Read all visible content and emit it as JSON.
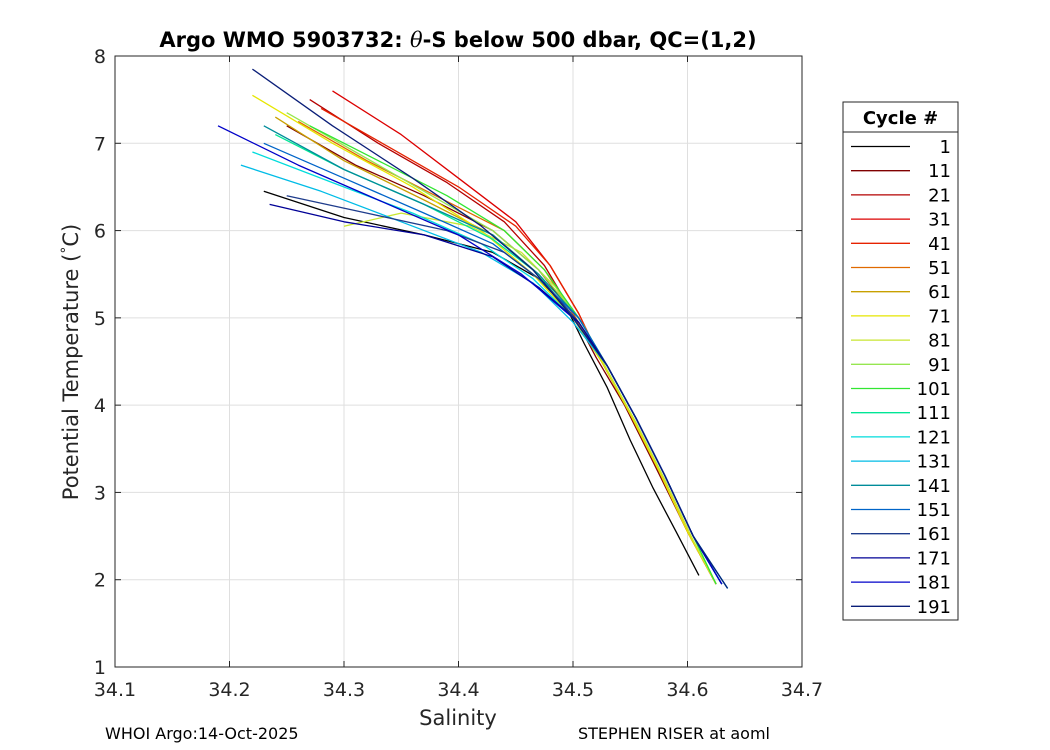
{
  "chart_data": {
    "type": "line",
    "title_prefix": "Argo WMO 5903732: ",
    "title_theta": "θ",
    "title_suffix": "-S below 500 dbar,  QC=(1,2)",
    "xlabel": "Salinity",
    "ylabel_prefix": "Potential Temperature (",
    "ylabel_degree": "°",
    "ylabel_suffix": "C)",
    "xlim": [
      34.1,
      34.7
    ],
    "ylim": [
      1,
      8
    ],
    "x_ticks": [
      "34.1",
      "34.2",
      "34.3",
      "34.4",
      "34.5",
      "34.6",
      "34.7"
    ],
    "y_ticks": [
      "1",
      "2",
      "3",
      "4",
      "5",
      "6",
      "7",
      "8"
    ],
    "grid": true,
    "legend": {
      "title": "Cycle #",
      "placement": "outside-right",
      "entries": [
        {
          "label": "1",
          "color": "#000000"
        },
        {
          "label": "11",
          "color": "#800000"
        },
        {
          "label": "21",
          "color": "#b40000"
        },
        {
          "label": "31",
          "color": "#dc0000"
        },
        {
          "label": "41",
          "color": "#e62200"
        },
        {
          "label": "51",
          "color": "#e06a00"
        },
        {
          "label": "61",
          "color": "#c8a000"
        },
        {
          "label": "71",
          "color": "#e6e600"
        },
        {
          "label": "81",
          "color": "#c8e632"
        },
        {
          "label": "91",
          "color": "#96e650"
        },
        {
          "label": "101",
          "color": "#32e632"
        },
        {
          "label": "111",
          "color": "#00e696"
        },
        {
          "label": "121",
          "color": "#00dcdc"
        },
        {
          "label": "131",
          "color": "#00bce6"
        },
        {
          "label": "141",
          "color": "#008c9a"
        },
        {
          "label": "151",
          "color": "#0064c8"
        },
        {
          "label": "161",
          "color": "#1e3c8c"
        },
        {
          "label": "171",
          "color": "#000096"
        },
        {
          "label": "181",
          "color": "#0000c8"
        },
        {
          "label": "191",
          "color": "#0a1e78"
        }
      ]
    },
    "series": [
      {
        "name": "1",
        "color": "#000000",
        "x": [
          34.23,
          34.3,
          34.37,
          34.43,
          34.47,
          34.495,
          34.51,
          34.53,
          34.55,
          34.57,
          34.59,
          34.61
        ],
        "y": [
          6.45,
          6.15,
          5.95,
          5.75,
          5.45,
          5.1,
          4.7,
          4.2,
          3.6,
          3.05,
          2.55,
          2.05
        ]
      },
      {
        "name": "11",
        "color": "#800000",
        "x": [
          34.25,
          34.31,
          34.37,
          34.43,
          34.47,
          34.5,
          34.52,
          34.545,
          34.57,
          34.6,
          34.625
        ],
        "y": [
          7.2,
          6.75,
          6.4,
          6.0,
          5.55,
          5.05,
          4.55,
          4.0,
          3.35,
          2.55,
          1.95
        ]
      },
      {
        "name": "21",
        "color": "#b40000",
        "x": [
          34.27,
          34.33,
          34.39,
          34.44,
          34.475,
          34.5,
          34.525,
          34.55,
          34.575,
          34.6,
          34.625
        ],
        "y": [
          7.5,
          7.0,
          6.55,
          6.1,
          5.6,
          5.05,
          4.5,
          3.9,
          3.25,
          2.55,
          1.95
        ]
      },
      {
        "name": "31",
        "color": "#dc0000",
        "x": [
          34.29,
          34.35,
          34.4,
          34.45,
          34.48,
          34.505,
          34.525,
          34.55,
          34.575,
          34.6,
          34.625
        ],
        "y": [
          7.6,
          7.1,
          6.6,
          6.1,
          5.6,
          5.05,
          4.5,
          3.9,
          3.25,
          2.55,
          1.95
        ]
      },
      {
        "name": "41",
        "color": "#e62200",
        "x": [
          34.28,
          34.34,
          34.4,
          34.45,
          34.48,
          34.505,
          34.525,
          34.55,
          34.575,
          34.6,
          34.625
        ],
        "y": [
          7.4,
          6.95,
          6.5,
          6.05,
          5.6,
          5.05,
          4.5,
          3.9,
          3.25,
          2.55,
          1.95
        ]
      },
      {
        "name": "51",
        "color": "#e06a00",
        "x": [
          34.26,
          34.32,
          34.38,
          34.44,
          34.475,
          34.5,
          34.525,
          34.55,
          34.575,
          34.6,
          34.625
        ],
        "y": [
          7.25,
          6.8,
          6.4,
          6.0,
          5.55,
          5.05,
          4.5,
          3.9,
          3.25,
          2.55,
          1.95
        ]
      },
      {
        "name": "61",
        "color": "#c8a000",
        "x": [
          34.24,
          34.3,
          34.37,
          34.43,
          34.47,
          34.5,
          34.525,
          34.55,
          34.575,
          34.6,
          34.625
        ],
        "y": [
          7.3,
          6.8,
          6.35,
          5.95,
          5.5,
          5.0,
          4.5,
          3.9,
          3.25,
          2.55,
          1.95
        ]
      },
      {
        "name": "71",
        "color": "#e6e600",
        "x": [
          34.22,
          34.29,
          34.36,
          34.42,
          34.465,
          34.5,
          34.525,
          34.55,
          34.575,
          34.6,
          34.625
        ],
        "y": [
          7.55,
          7.0,
          6.5,
          6.0,
          5.5,
          5.0,
          4.5,
          3.9,
          3.25,
          2.55,
          1.95
        ]
      },
      {
        "name": "81",
        "color": "#c8e632",
        "x": [
          34.3,
          34.35,
          34.41,
          34.455,
          34.485,
          34.51,
          34.53,
          34.555,
          34.58,
          34.605,
          34.625
        ],
        "y": [
          6.05,
          6.2,
          6.05,
          5.75,
          5.35,
          4.9,
          4.4,
          3.8,
          3.15,
          2.45,
          1.95
        ]
      },
      {
        "name": "91",
        "color": "#96e650",
        "x": [
          34.25,
          34.31,
          34.37,
          34.43,
          34.47,
          34.505,
          34.53,
          34.555,
          34.58,
          34.605,
          34.625
        ],
        "y": [
          7.35,
          6.9,
          6.45,
          6.0,
          5.55,
          5.0,
          4.45,
          3.85,
          3.2,
          2.5,
          1.95
        ]
      },
      {
        "name": "101",
        "color": "#32e632",
        "x": [
          34.27,
          34.33,
          34.39,
          34.44,
          34.475,
          34.505,
          34.53,
          34.555,
          34.58,
          34.605,
          34.625
        ],
        "y": [
          7.2,
          6.8,
          6.4,
          6.0,
          5.55,
          5.0,
          4.45,
          3.85,
          3.2,
          2.5,
          1.95
        ]
      },
      {
        "name": "111",
        "color": "#00e696",
        "x": [
          34.24,
          34.3,
          34.37,
          34.43,
          34.47,
          34.5,
          34.53,
          34.555,
          34.58,
          34.605,
          34.63
        ],
        "y": [
          7.1,
          6.7,
          6.3,
          5.9,
          5.5,
          5.0,
          4.45,
          3.85,
          3.2,
          2.5,
          1.95
        ]
      },
      {
        "name": "121",
        "color": "#00dcdc",
        "x": [
          34.22,
          34.29,
          34.36,
          34.42,
          34.465,
          34.5,
          34.53,
          34.555,
          34.58,
          34.605,
          34.635
        ],
        "y": [
          6.9,
          6.55,
          6.2,
          5.85,
          5.45,
          5.0,
          4.45,
          3.85,
          3.2,
          2.5,
          1.9
        ]
      },
      {
        "name": "131",
        "color": "#00bce6",
        "x": [
          34.21,
          34.28,
          34.35,
          34.42,
          34.465,
          34.5,
          34.53,
          34.555,
          34.58,
          34.605,
          34.635
        ],
        "y": [
          6.75,
          6.45,
          6.1,
          5.75,
          5.4,
          4.95,
          4.45,
          3.85,
          3.2,
          2.5,
          1.9
        ]
      },
      {
        "name": "141",
        "color": "#008c9a",
        "x": [
          34.23,
          34.3,
          34.37,
          34.43,
          34.47,
          34.505,
          34.53,
          34.555,
          34.58,
          34.605,
          34.63
        ],
        "y": [
          7.2,
          6.7,
          6.3,
          5.95,
          5.5,
          5.0,
          4.45,
          3.85,
          3.2,
          2.5,
          1.95
        ]
      },
      {
        "name": "151",
        "color": "#0064c8",
        "x": [
          34.23,
          34.3,
          34.37,
          34.43,
          34.47,
          34.505,
          34.53,
          34.555,
          34.58,
          34.605,
          34.63
        ],
        "y": [
          7.0,
          6.6,
          6.2,
          5.85,
          5.45,
          5.0,
          4.45,
          3.85,
          3.2,
          2.5,
          1.95
        ]
      },
      {
        "name": "161",
        "color": "#1e3c8c",
        "x": [
          34.25,
          34.32,
          34.39,
          34.44,
          34.475,
          34.505,
          34.53,
          34.555,
          34.58,
          34.605,
          34.63
        ],
        "y": [
          6.4,
          6.2,
          6.0,
          5.75,
          5.4,
          4.95,
          4.45,
          3.85,
          3.2,
          2.5,
          1.95
        ]
      },
      {
        "name": "171",
        "color": "#000096",
        "x": [
          34.235,
          34.3,
          34.37,
          34.43,
          34.47,
          34.505,
          34.53,
          34.555,
          34.58,
          34.605,
          34.63
        ],
        "y": [
          6.3,
          6.1,
          5.95,
          5.7,
          5.35,
          4.95,
          4.45,
          3.85,
          3.2,
          2.5,
          1.95
        ]
      },
      {
        "name": "181",
        "color": "#0000c8",
        "x": [
          34.19,
          34.26,
          34.33,
          34.4,
          34.455,
          34.5,
          34.53,
          34.555,
          34.58,
          34.605,
          34.63
        ],
        "y": [
          7.2,
          6.75,
          6.35,
          5.95,
          5.5,
          5.0,
          4.45,
          3.85,
          3.2,
          2.5,
          1.95
        ]
      },
      {
        "name": "191",
        "color": "#0a1e78",
        "x": [
          34.22,
          34.29,
          34.36,
          34.42,
          34.465,
          34.5,
          34.53,
          34.555,
          34.58,
          34.605,
          34.635
        ],
        "y": [
          7.85,
          7.2,
          6.6,
          6.05,
          5.55,
          5.0,
          4.45,
          3.85,
          3.2,
          2.5,
          1.9
        ]
      }
    ]
  },
  "footer": {
    "left": "WHOI Argo:14-Oct-2025",
    "right": "STEPHEN RISER at aoml"
  }
}
